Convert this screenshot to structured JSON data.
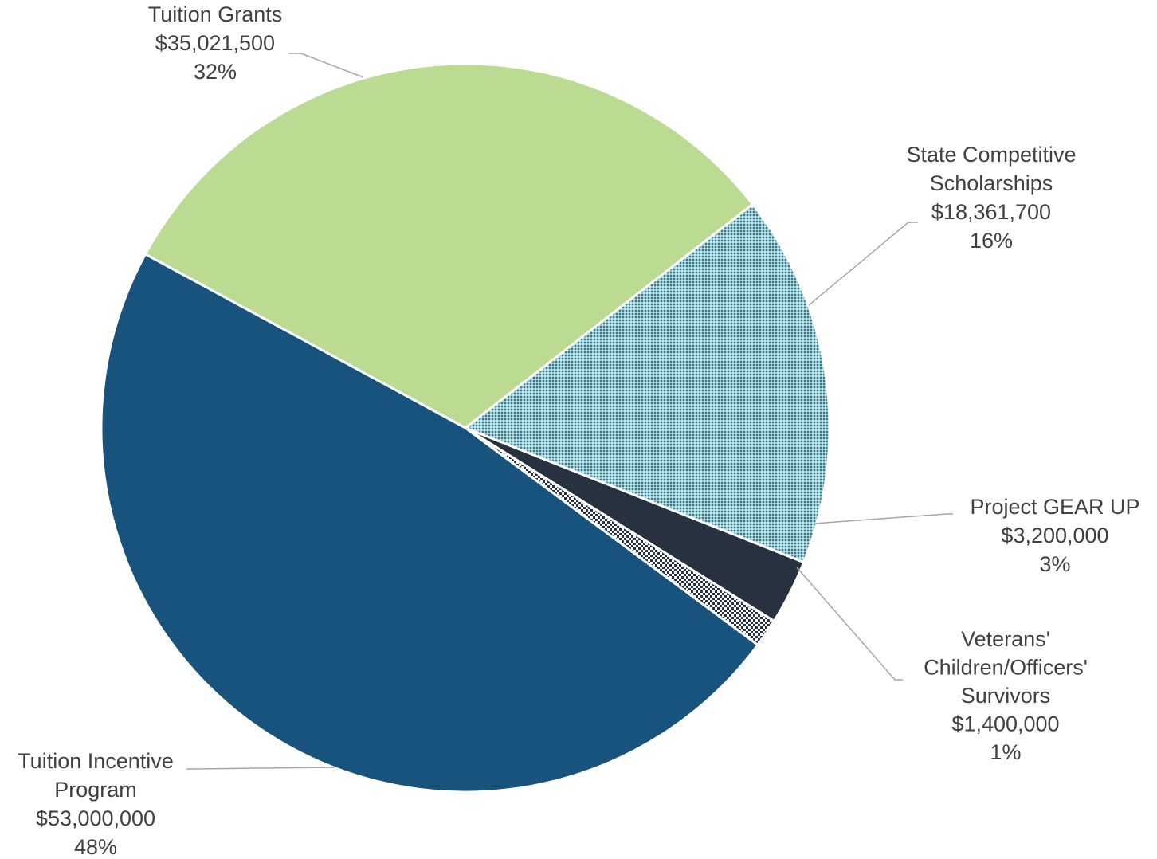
{
  "chart_data": {
    "type": "pie",
    "title": "",
    "slices": [
      {
        "name": "Tuition Grants",
        "value": 35021500,
        "value_label": "$35,021,500",
        "percent_label": "32%",
        "color": "#bcdb92",
        "pattern": "solid"
      },
      {
        "name": "State Competitive Scholarships",
        "value": 18361700,
        "value_label": "$18,361,700",
        "percent_label": "16%",
        "color": "#2a8193",
        "pattern": "dots"
      },
      {
        "name": "Project GEAR UP",
        "value": 3200000,
        "value_label": "$3,200,000",
        "percent_label": "3%",
        "color": "#28313f",
        "pattern": "solid"
      },
      {
        "name": "Veterans' Children/Officers' Survivors",
        "value": 1400000,
        "value_label": "$1,400,000",
        "percent_label": "1%",
        "color": "#28313f",
        "pattern": "checker"
      },
      {
        "name": "Tuition Incentive Program",
        "value": 53000000,
        "value_label": "$53,000,000",
        "percent_label": "48%",
        "color": "#17537c",
        "pattern": "solid"
      }
    ],
    "labels": [
      {
        "lines": [
          "Tuition Grants",
          "$35,021,500",
          "32%"
        ]
      },
      {
        "lines": [
          "State Competitive",
          "Scholarships",
          "$18,361,700",
          "16%"
        ]
      },
      {
        "lines": [
          "Project GEAR UP",
          "$3,200,000",
          "3%"
        ]
      },
      {
        "lines": [
          "Veterans'",
          "Children/Officers'",
          "Survivors",
          "$1,400,000",
          "1%"
        ]
      },
      {
        "lines": [
          "Tuition Incentive",
          "Program",
          "$53,000,000",
          "48%"
        ]
      }
    ],
    "legend": "none"
  }
}
